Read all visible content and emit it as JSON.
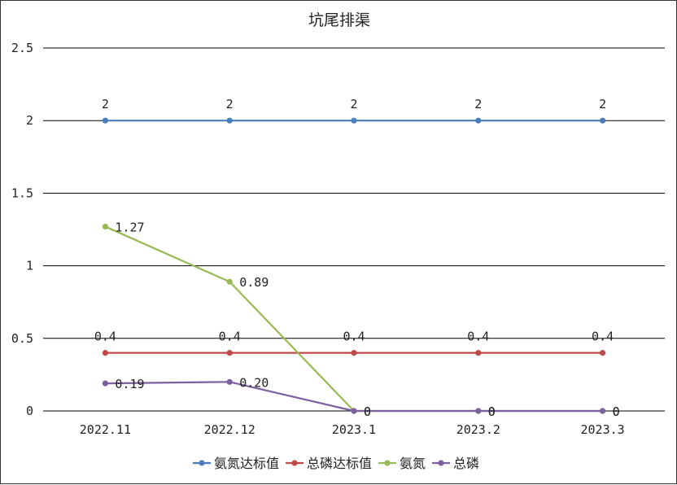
{
  "chart_data": {
    "type": "line",
    "title": "坑尾排渠",
    "categories": [
      "2022.11",
      "2022.12",
      "2023.1",
      "2023.2",
      "2023.3"
    ],
    "ylim": [
      0,
      2.5
    ],
    "yticks": [
      "0",
      "0.5",
      "1",
      "1.5",
      "2",
      "2.5"
    ],
    "ytick_values": [
      0,
      0.5,
      1,
      1.5,
      2,
      2.5
    ],
    "grid": true,
    "legend_position": "bottom",
    "series": [
      {
        "name": "氨氮达标值",
        "color": "#4a7ebb",
        "values": [
          2,
          2,
          2,
          2,
          2
        ],
        "labels": [
          "2",
          "2",
          "2",
          "2",
          "2"
        ],
        "label_position": "above"
      },
      {
        "name": "总磷达标值",
        "color": "#be4b48",
        "values": [
          0.4,
          0.4,
          0.4,
          0.4,
          0.4
        ],
        "labels": [
          "0.4",
          "0.4",
          "0.4",
          "0.4",
          "0.4"
        ],
        "label_position": "above"
      },
      {
        "name": "氨氮",
        "color": "#98b954",
        "values": [
          1.27,
          0.89,
          0,
          0,
          0
        ],
        "labels": [
          "1.27",
          "0.89",
          "0",
          "0",
          "0"
        ],
        "label_position": "right"
      },
      {
        "name": "总磷",
        "color": "#7d60a0",
        "values": [
          0.19,
          0.2,
          0,
          0,
          0
        ],
        "labels": [
          "0.19",
          "0.20",
          "0",
          "0",
          "0"
        ],
        "label_position": "right"
      }
    ]
  }
}
